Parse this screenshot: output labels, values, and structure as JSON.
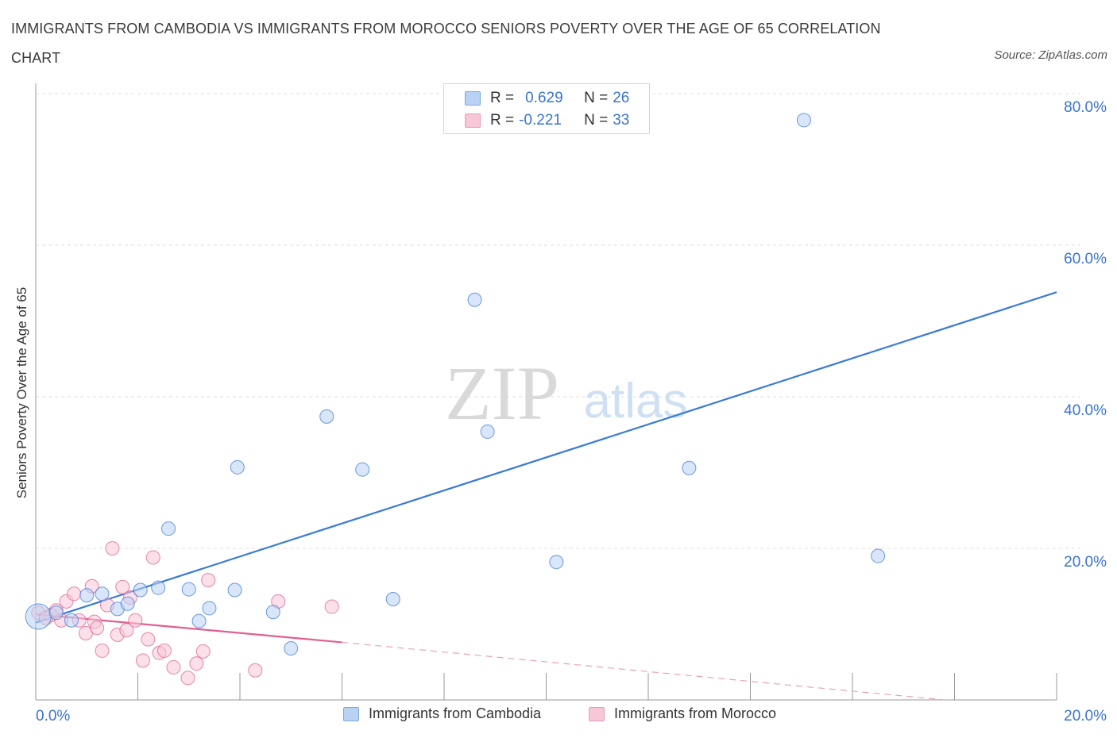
{
  "title": "IMMIGRANTS FROM CAMBODIA VS IMMIGRANTS FROM MOROCCO SENIORS POVERTY OVER THE AGE OF 65 CORRELATION CHART",
  "source": "Source: ZipAtlas.com",
  "watermark": {
    "zip": "ZIP",
    "atlas": "atlas"
  },
  "legend": {
    "series": [
      {
        "r_label": "R =",
        "r_value": "0.629",
        "n_label": "N =",
        "n_value": "26"
      },
      {
        "r_label": "R =",
        "r_value": "-0.221",
        "n_label": "N =",
        "n_value": "33"
      }
    ]
  },
  "chart_data": {
    "type": "scatter",
    "title": "IMMIGRANTS FROM CAMBODIA VS IMMIGRANTS FROM MOROCCO SENIORS POVERTY OVER THE AGE OF 65 CORRELATION CHART",
    "xlabel": "",
    "ylabel": "Seniors Poverty Over the Age of 65",
    "xlim": [
      0,
      20
    ],
    "ylim": [
      0,
      80
    ],
    "x_tick_labels": [
      "0.0%",
      "20.0%"
    ],
    "y_tick_labels": [
      "20.0%",
      "40.0%",
      "60.0%",
      "80.0%"
    ],
    "y_ticks": [
      20,
      40,
      60,
      80
    ],
    "grid": true,
    "series": [
      {
        "name": "Immigrants from Cambodia",
        "color": "#3a7bd5",
        "fill": "#b9d2f4",
        "points": [
          {
            "x": 0.05,
            "y": 11.0,
            "size": "large"
          },
          {
            "x": 0.4,
            "y": 11.5
          },
          {
            "x": 0.7,
            "y": 10.5
          },
          {
            "x": 1.0,
            "y": 13.8
          },
          {
            "x": 1.3,
            "y": 14.0
          },
          {
            "x": 1.6,
            "y": 12.0
          },
          {
            "x": 1.8,
            "y": 12.7
          },
          {
            "x": 2.05,
            "y": 14.5
          },
          {
            "x": 2.4,
            "y": 14.8
          },
          {
            "x": 2.6,
            "y": 22.6
          },
          {
            "x": 3.0,
            "y": 14.6
          },
          {
            "x": 3.2,
            "y": 10.4
          },
          {
            "x": 3.4,
            "y": 12.1
          },
          {
            "x": 3.9,
            "y": 14.5
          },
          {
            "x": 3.95,
            "y": 30.7
          },
          {
            "x": 4.65,
            "y": 11.6
          },
          {
            "x": 5.0,
            "y": 6.8
          },
          {
            "x": 5.7,
            "y": 37.4
          },
          {
            "x": 6.4,
            "y": 30.4
          },
          {
            "x": 7.0,
            "y": 13.3
          },
          {
            "x": 8.6,
            "y": 52.8
          },
          {
            "x": 8.85,
            "y": 35.4
          },
          {
            "x": 10.2,
            "y": 18.2
          },
          {
            "x": 12.8,
            "y": 30.6
          },
          {
            "x": 15.05,
            "y": 76.5
          },
          {
            "x": 16.5,
            "y": 19.0
          }
        ],
        "trend": {
          "x0": 0.0,
          "y0": 10.2,
          "x1": 20.0,
          "y1": 53.8
        }
      },
      {
        "name": "Immigrants from Morocco",
        "color": "#e0608f",
        "fill": "#f7c6d7",
        "points": [
          {
            "x": 0.05,
            "y": 11.5
          },
          {
            "x": 0.3,
            "y": 11.2
          },
          {
            "x": 0.5,
            "y": 10.5
          },
          {
            "x": 0.6,
            "y": 13.0
          },
          {
            "x": 0.75,
            "y": 14.0
          },
          {
            "x": 0.85,
            "y": 10.5
          },
          {
            "x": 0.98,
            "y": 8.8
          },
          {
            "x": 1.1,
            "y": 15.0
          },
          {
            "x": 1.15,
            "y": 10.3
          },
          {
            "x": 1.3,
            "y": 6.5
          },
          {
            "x": 1.4,
            "y": 12.5
          },
          {
            "x": 1.5,
            "y": 20.0
          },
          {
            "x": 1.6,
            "y": 8.6
          },
          {
            "x": 1.7,
            "y": 14.9
          },
          {
            "x": 1.78,
            "y": 9.2
          },
          {
            "x": 1.85,
            "y": 13.5
          },
          {
            "x": 1.95,
            "y": 10.5
          },
          {
            "x": 2.1,
            "y": 5.2
          },
          {
            "x": 2.2,
            "y": 8.0
          },
          {
            "x": 2.3,
            "y": 18.8
          },
          {
            "x": 2.42,
            "y": 6.2
          },
          {
            "x": 2.52,
            "y": 6.5
          },
          {
            "x": 2.7,
            "y": 4.3
          },
          {
            "x": 2.98,
            "y": 2.9
          },
          {
            "x": 3.15,
            "y": 4.8
          },
          {
            "x": 3.28,
            "y": 6.4
          },
          {
            "x": 3.38,
            "y": 15.8
          },
          {
            "x": 4.3,
            "y": 3.9
          },
          {
            "x": 4.75,
            "y": 13.0
          },
          {
            "x": 5.8,
            "y": 12.3
          },
          {
            "x": 0.2,
            "y": 10.8
          },
          {
            "x": 0.4,
            "y": 11.8
          },
          {
            "x": 1.2,
            "y": 9.5
          }
        ],
        "trend": {
          "x0": 0.0,
          "y0": 11.3,
          "x1": 6.0,
          "y1": 7.6
        },
        "trend_dashed": {
          "x0": 6.0,
          "y0": 7.6,
          "x1": 17.8,
          "y1": 0.0
        }
      }
    ],
    "legend_position": "top-center",
    "bottom_legend": [
      "Immigrants from Cambodia",
      "Immigrants from Morocco"
    ]
  }
}
